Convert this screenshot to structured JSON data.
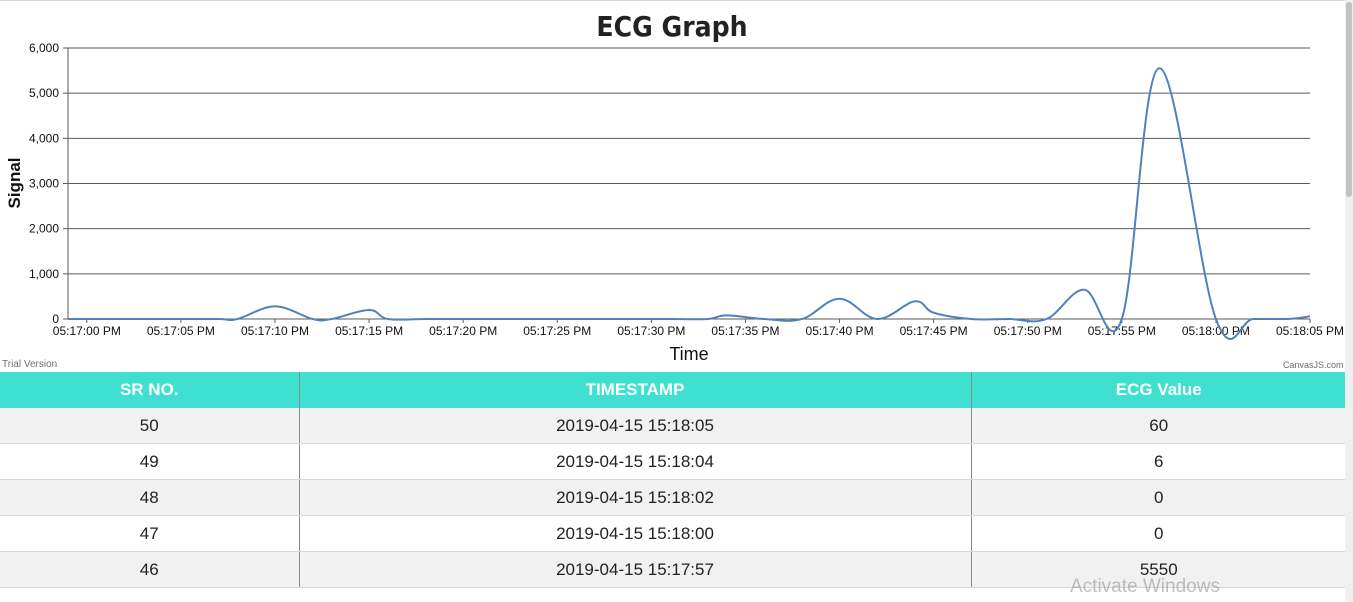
{
  "chart": {
    "trial_label": "Trial Version",
    "brand_label": "CanvasJS.com"
  },
  "chart_data": {
    "type": "line",
    "title": "ECG Graph",
    "xlabel": "Time",
    "ylabel": "Signal",
    "ylim": [
      0,
      6000
    ],
    "yticks": [
      0,
      1000,
      2000,
      3000,
      4000,
      5000,
      6000
    ],
    "ytick_labels": [
      "0",
      "1,000",
      "2,000",
      "3,000",
      "4,000",
      "5,000",
      "6,000"
    ],
    "xlim": [
      "05:16:59 PM",
      "05:18:05 PM"
    ],
    "xticks": [
      "05:17:00 PM",
      "05:17:05 PM",
      "05:17:10 PM",
      "05:17:15 PM",
      "05:17:20 PM",
      "05:17:25 PM",
      "05:17:30 PM",
      "05:17:35 PM",
      "05:17:40 PM",
      "05:17:45 PM",
      "05:17:50 PM",
      "05:17:55 PM",
      "05:18:00 PM",
      "05:18:05 PM"
    ],
    "grid": "horizontal",
    "line_color": "#4f81bc",
    "series": [
      {
        "x": [
          "05:16:59 PM",
          "05:17:01 PM",
          "05:17:03 PM",
          "05:17:05 PM",
          "05:17:07 PM",
          "05:17:08 PM",
          "05:17:10 PM",
          "05:17:12 PM",
          "05:17:13 PM",
          "05:17:15 PM",
          "05:17:16 PM",
          "05:17:18 PM",
          "05:17:20 PM",
          "05:17:22 PM",
          "05:17:24 PM",
          "05:17:26 PM",
          "05:17:28 PM",
          "05:17:30 PM",
          "05:17:31 PM",
          "05:17:33 PM",
          "05:17:34 PM",
          "05:17:36 PM",
          "05:17:38 PM",
          "05:17:40 PM",
          "05:17:42 PM",
          "05:17:44 PM",
          "05:17:45 PM",
          "05:17:47 PM",
          "05:17:49 PM",
          "05:17:51 PM",
          "05:17:53 PM",
          "05:17:55 PM",
          "05:17:57 PM",
          "05:18:00 PM",
          "05:18:02 PM",
          "05:18:04 PM",
          "05:18:05 PM"
        ],
        "values": [
          0,
          0,
          0,
          0,
          0,
          0,
          280,
          0,
          0,
          200,
          0,
          0,
          0,
          0,
          0,
          0,
          0,
          0,
          0,
          0,
          80,
          0,
          0,
          450,
          0,
          390,
          140,
          0,
          0,
          0,
          650,
          0,
          5550,
          0,
          0,
          6,
          60
        ]
      }
    ]
  },
  "table": {
    "headers": [
      "SR NO.",
      "TIMESTAMP",
      "ECG Value"
    ],
    "rows": [
      [
        "50",
        "2019-04-15 15:18:05",
        "60"
      ],
      [
        "49",
        "2019-04-15 15:18:04",
        "6"
      ],
      [
        "48",
        "2019-04-15 15:18:02",
        "0"
      ],
      [
        "47",
        "2019-04-15 15:18:00",
        "0"
      ],
      [
        "46",
        "2019-04-15 15:17:57",
        "5550"
      ]
    ]
  },
  "overlay": {
    "activate_windows": "Activate Windows"
  },
  "colors": {
    "header_bg": "#40e0d0",
    "header_text": "#ffffff",
    "row_alt": "#f1f1f1",
    "line": "#4f81bc"
  }
}
